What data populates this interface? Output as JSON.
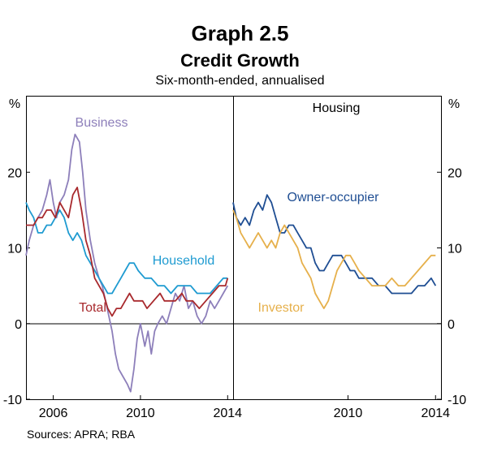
{
  "title": "Graph 2.5",
  "subtitle": "Credit Growth",
  "units_note": "Six-month-ended, annualised",
  "source": "Sources: APRA; RBA",
  "colors": {
    "business": "#8d7fba",
    "household": "#1f9bd1",
    "total": "#a8292d",
    "owner_occupier": "#1f4e93",
    "investor": "#e6b04b"
  },
  "chart_data": [
    {
      "type": "line",
      "panel": "left",
      "ylabel": "%",
      "ylim": [
        -10,
        30
      ],
      "yticks": [
        -10,
        0,
        10,
        20
      ],
      "xlim": [
        2004.75,
        2014.25
      ],
      "xticks": [
        2006,
        2010,
        2014
      ],
      "grid": false,
      "series": [
        {
          "name": "Business",
          "color_key": "business",
          "points": [
            [
              2004.75,
              9
            ],
            [
              2004.9,
              11
            ],
            [
              2005.1,
              13
            ],
            [
              2005.3,
              14
            ],
            [
              2005.5,
              15
            ],
            [
              2005.7,
              17
            ],
            [
              2005.85,
              19
            ],
            [
              2006.0,
              16
            ],
            [
              2006.15,
              14
            ],
            [
              2006.3,
              16
            ],
            [
              2006.5,
              17
            ],
            [
              2006.7,
              19
            ],
            [
              2006.85,
              23
            ],
            [
              2007.0,
              25
            ],
            [
              2007.2,
              24
            ],
            [
              2007.35,
              20
            ],
            [
              2007.5,
              15
            ],
            [
              2007.7,
              11
            ],
            [
              2007.9,
              8
            ],
            [
              2008.1,
              6
            ],
            [
              2008.25,
              5
            ],
            [
              2008.4,
              3
            ],
            [
              2008.55,
              1
            ],
            [
              2008.7,
              -1
            ],
            [
              2008.85,
              -4
            ],
            [
              2009.0,
              -6
            ],
            [
              2009.2,
              -7
            ],
            [
              2009.4,
              -8
            ],
            [
              2009.55,
              -9
            ],
            [
              2009.7,
              -6
            ],
            [
              2009.85,
              -2
            ],
            [
              2010.0,
              0
            ],
            [
              2010.2,
              -3
            ],
            [
              2010.35,
              -1
            ],
            [
              2010.5,
              -4
            ],
            [
              2010.65,
              -1
            ],
            [
              2010.8,
              0
            ],
            [
              2011.0,
              1
            ],
            [
              2011.2,
              0
            ],
            [
              2011.4,
              2
            ],
            [
              2011.6,
              4
            ],
            [
              2011.8,
              3
            ],
            [
              2012.0,
              5
            ],
            [
              2012.2,
              2
            ],
            [
              2012.4,
              3
            ],
            [
              2012.6,
              1
            ],
            [
              2012.8,
              0
            ],
            [
              2013.0,
              1
            ],
            [
              2013.2,
              3
            ],
            [
              2013.4,
              2
            ],
            [
              2013.6,
              3
            ],
            [
              2013.8,
              4
            ],
            [
              2014.0,
              5
            ]
          ]
        },
        {
          "name": "Household",
          "color_key": "household",
          "points": [
            [
              2004.75,
              16
            ],
            [
              2004.9,
              15
            ],
            [
              2005.1,
              14
            ],
            [
              2005.3,
              12
            ],
            [
              2005.5,
              12
            ],
            [
              2005.7,
              13
            ],
            [
              2005.9,
              13
            ],
            [
              2006.1,
              14
            ],
            [
              2006.3,
              15
            ],
            [
              2006.5,
              14
            ],
            [
              2006.7,
              12
            ],
            [
              2006.9,
              11
            ],
            [
              2007.1,
              12
            ],
            [
              2007.3,
              11
            ],
            [
              2007.5,
              9
            ],
            [
              2007.7,
              8
            ],
            [
              2007.9,
              7
            ],
            [
              2008.1,
              6
            ],
            [
              2008.3,
              5
            ],
            [
              2008.5,
              4
            ],
            [
              2008.7,
              4
            ],
            [
              2008.9,
              5
            ],
            [
              2009.1,
              6
            ],
            [
              2009.3,
              7
            ],
            [
              2009.5,
              8
            ],
            [
              2009.7,
              8
            ],
            [
              2009.9,
              7
            ],
            [
              2010.2,
              6
            ],
            [
              2010.5,
              6
            ],
            [
              2010.8,
              5
            ],
            [
              2011.1,
              5
            ],
            [
              2011.4,
              4
            ],
            [
              2011.7,
              5
            ],
            [
              2012.0,
              5
            ],
            [
              2012.3,
              5
            ],
            [
              2012.6,
              4
            ],
            [
              2012.9,
              4
            ],
            [
              2013.2,
              4
            ],
            [
              2013.5,
              5
            ],
            [
              2013.8,
              6
            ],
            [
              2014.0,
              6
            ]
          ]
        },
        {
          "name": "Total",
          "color_key": "total",
          "points": [
            [
              2004.75,
              13
            ],
            [
              2004.9,
              13
            ],
            [
              2005.1,
              13
            ],
            [
              2005.3,
              14
            ],
            [
              2005.5,
              14
            ],
            [
              2005.7,
              15
            ],
            [
              2005.9,
              15
            ],
            [
              2006.1,
              14
            ],
            [
              2006.3,
              16
            ],
            [
              2006.5,
              15
            ],
            [
              2006.7,
              14
            ],
            [
              2006.9,
              17
            ],
            [
              2007.1,
              18
            ],
            [
              2007.3,
              15
            ],
            [
              2007.5,
              11
            ],
            [
              2007.7,
              9
            ],
            [
              2007.9,
              6
            ],
            [
              2008.1,
              5
            ],
            [
              2008.3,
              4
            ],
            [
              2008.5,
              2
            ],
            [
              2008.7,
              1
            ],
            [
              2008.9,
              2
            ],
            [
              2009.1,
              2
            ],
            [
              2009.3,
              3
            ],
            [
              2009.5,
              4
            ],
            [
              2009.7,
              3
            ],
            [
              2009.9,
              3
            ],
            [
              2010.1,
              3
            ],
            [
              2010.3,
              2
            ],
            [
              2010.6,
              3
            ],
            [
              2010.9,
              4
            ],
            [
              2011.1,
              3
            ],
            [
              2011.3,
              3
            ],
            [
              2011.6,
              3
            ],
            [
              2011.9,
              4
            ],
            [
              2012.1,
              3
            ],
            [
              2012.4,
              3
            ],
            [
              2012.7,
              2
            ],
            [
              2013.0,
              3
            ],
            [
              2013.3,
              4
            ],
            [
              2013.6,
              5
            ],
            [
              2013.9,
              5
            ],
            [
              2014.0,
              6
            ]
          ]
        }
      ]
    },
    {
      "type": "line",
      "panel": "right",
      "panel_title": "Housing",
      "ylabel": "%",
      "ylim": [
        -10,
        30
      ],
      "yticks": [
        -10,
        0,
        10,
        20
      ],
      "xlim": [
        2004.75,
        2014.25
      ],
      "xticks": [
        2010,
        2014
      ],
      "grid": false,
      "series": [
        {
          "name": "Owner-occupier",
          "color_key": "owner_occupier",
          "points": [
            [
              2004.75,
              16
            ],
            [
              2004.9,
              14
            ],
            [
              2005.1,
              13
            ],
            [
              2005.3,
              14
            ],
            [
              2005.5,
              13
            ],
            [
              2005.7,
              15
            ],
            [
              2005.9,
              16
            ],
            [
              2006.1,
              15
            ],
            [
              2006.3,
              17
            ],
            [
              2006.5,
              16
            ],
            [
              2006.7,
              14
            ],
            [
              2006.9,
              12
            ],
            [
              2007.1,
              12
            ],
            [
              2007.3,
              13
            ],
            [
              2007.5,
              13
            ],
            [
              2007.7,
              12
            ],
            [
              2007.9,
              11
            ],
            [
              2008.1,
              10
            ],
            [
              2008.3,
              10
            ],
            [
              2008.5,
              8
            ],
            [
              2008.7,
              7
            ],
            [
              2008.9,
              7
            ],
            [
              2009.1,
              8
            ],
            [
              2009.3,
              9
            ],
            [
              2009.5,
              9
            ],
            [
              2009.7,
              9
            ],
            [
              2009.9,
              8
            ],
            [
              2010.1,
              7
            ],
            [
              2010.3,
              7
            ],
            [
              2010.5,
              6
            ],
            [
              2010.8,
              6
            ],
            [
              2011.1,
              6
            ],
            [
              2011.4,
              5
            ],
            [
              2011.7,
              5
            ],
            [
              2012.0,
              4
            ],
            [
              2012.3,
              4
            ],
            [
              2012.6,
              4
            ],
            [
              2012.9,
              4
            ],
            [
              2013.2,
              5
            ],
            [
              2013.5,
              5
            ],
            [
              2013.8,
              6
            ],
            [
              2014.0,
              5
            ]
          ]
        },
        {
          "name": "Investor",
          "color_key": "investor",
          "points": [
            [
              2004.75,
              15
            ],
            [
              2004.9,
              14
            ],
            [
              2005.1,
              12
            ],
            [
              2005.3,
              11
            ],
            [
              2005.5,
              10
            ],
            [
              2005.7,
              11
            ],
            [
              2005.9,
              12
            ],
            [
              2006.1,
              11
            ],
            [
              2006.3,
              10
            ],
            [
              2006.5,
              11
            ],
            [
              2006.7,
              10
            ],
            [
              2006.9,
              12
            ],
            [
              2007.1,
              13
            ],
            [
              2007.3,
              12
            ],
            [
              2007.5,
              11
            ],
            [
              2007.7,
              10
            ],
            [
              2007.9,
              8
            ],
            [
              2008.1,
              7
            ],
            [
              2008.3,
              6
            ],
            [
              2008.5,
              4
            ],
            [
              2008.7,
              3
            ],
            [
              2008.9,
              2
            ],
            [
              2009.1,
              3
            ],
            [
              2009.3,
              5
            ],
            [
              2009.5,
              7
            ],
            [
              2009.7,
              8
            ],
            [
              2009.9,
              9
            ],
            [
              2010.1,
              9
            ],
            [
              2010.3,
              8
            ],
            [
              2010.5,
              7
            ],
            [
              2010.8,
              6
            ],
            [
              2011.1,
              5
            ],
            [
              2011.4,
              5
            ],
            [
              2011.7,
              5
            ],
            [
              2012.0,
              6
            ],
            [
              2012.3,
              5
            ],
            [
              2012.6,
              5
            ],
            [
              2012.9,
              6
            ],
            [
              2013.2,
              7
            ],
            [
              2013.5,
              8
            ],
            [
              2013.8,
              9
            ],
            [
              2014.0,
              9
            ]
          ]
        }
      ]
    }
  ]
}
